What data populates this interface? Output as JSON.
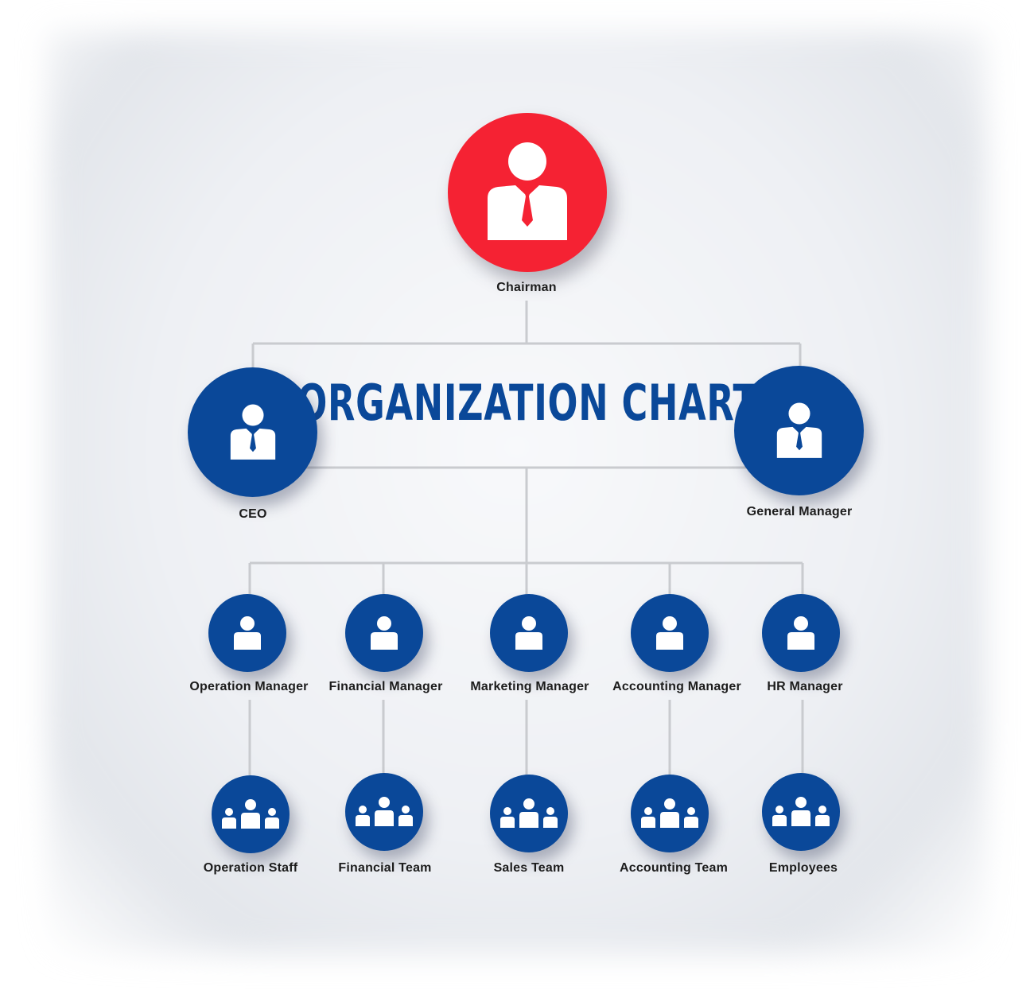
{
  "title": "ORGANIZATION CHART",
  "colors": {
    "accent_red": "#f52233",
    "accent_blue": "#0a4899",
    "connector": "#c9cbcf"
  },
  "nodes": {
    "chairman": {
      "label": "Chairman",
      "icon": "executive-icon"
    },
    "ceo": {
      "label": "CEO",
      "icon": "executive-icon"
    },
    "general_manager": {
      "label": "General Manager",
      "icon": "executive-icon"
    },
    "managers": [
      {
        "label": "Operation Manager",
        "icon": "person-icon"
      },
      {
        "label": "Financial Manager",
        "icon": "person-icon"
      },
      {
        "label": "Marketing Manager",
        "icon": "person-icon"
      },
      {
        "label": "Accounting Manager",
        "icon": "person-icon"
      },
      {
        "label": "HR Manager",
        "icon": "person-icon"
      }
    ],
    "teams": [
      {
        "label": "Operation Staff",
        "icon": "group-icon"
      },
      {
        "label": "Financial Team",
        "icon": "group-icon"
      },
      {
        "label": "Sales Team",
        "icon": "group-icon"
      },
      {
        "label": "Accounting Team",
        "icon": "group-icon"
      },
      {
        "label": "Employees",
        "icon": "group-icon"
      }
    ]
  }
}
